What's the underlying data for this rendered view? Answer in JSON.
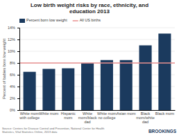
{
  "chart_data": {
    "type": "bar",
    "title": "Low birth weight risks by race, ethnicity, and\neducation 2013",
    "categories": [
      "White mom\nwith college",
      "White mom",
      "Hispanic\nmom",
      "White\nmom/black\ndad",
      "White mom\nno college",
      "Asian mom",
      "Black\nmom/white\ndad",
      "Black mom"
    ],
    "series": [
      {
        "name": "Percent born low weight",
        "color": "#1b3a5e",
        "values": [
          6.5,
          7.0,
          7.1,
          8.0,
          8.5,
          8.5,
          11.0,
          13.0
        ]
      }
    ],
    "reference_lines": [
      {
        "name": "All US births",
        "value": 8.0,
        "color": "#e89090"
      }
    ],
    "ylabel": "Percent of babies born low weight",
    "ylim": [
      0,
      14
    ],
    "yticks": [
      {
        "value": 0,
        "label": "0%"
      },
      {
        "value": 2,
        "label": "2%"
      },
      {
        "value": 4,
        "label": "4%"
      },
      {
        "value": 6,
        "label": "6%"
      },
      {
        "value": 8,
        "label": "8%"
      },
      {
        "value": 10,
        "label": "10%"
      },
      {
        "value": 12,
        "label": "12%"
      },
      {
        "value": 14,
        "label": "14%"
      }
    ],
    "grid": true,
    "legend": "top",
    "annotations": [
      "Source: Centers for Disease Control and Prevention, National Center for Health\nStatistics, Vital Statistics Online, 2013 data",
      "BROOKINGS"
    ]
  }
}
